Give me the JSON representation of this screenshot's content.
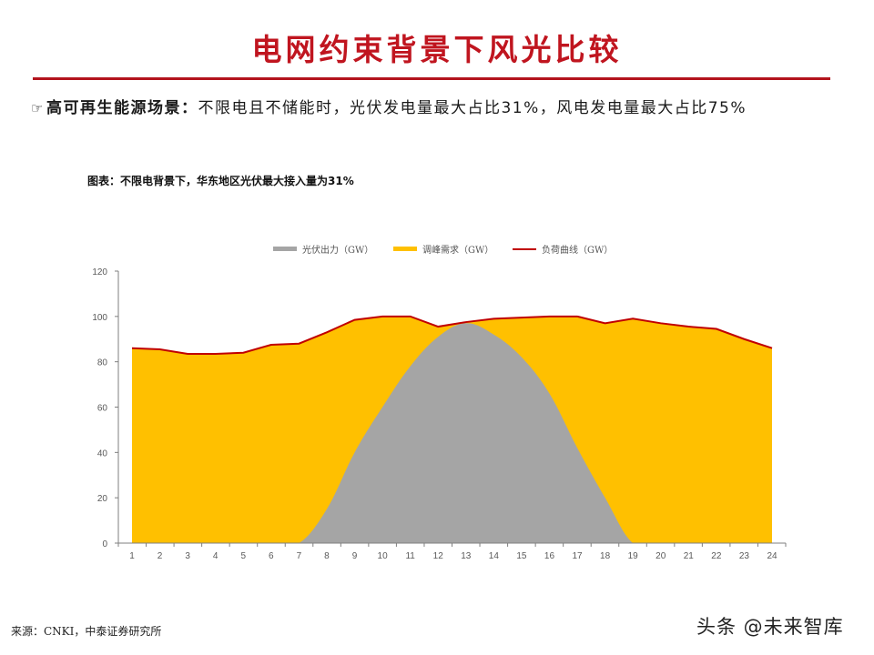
{
  "header": {
    "title": "电网约束背景下风光比较",
    "accent_color": "#c0151f"
  },
  "subtitle": {
    "icon": "pointing-hand-icon",
    "icon_glyph": "☞",
    "bold_text": "高可再生能源场景：",
    "text": "不限电且不储能时，光伏发电量最大占比31%，风电发电量最大占比75%"
  },
  "chart_caption": "图表：不限电背景下，华东地区光伏最大接入量为31%",
  "legend": [
    {
      "label": "光伏出力（GW）",
      "color": "#a5a5a5",
      "type": "area"
    },
    {
      "label": "调峰需求（GW）",
      "color": "#ffc000",
      "type": "area"
    },
    {
      "label": "负荷曲线（GW）",
      "color": "#c00000",
      "type": "line"
    }
  ],
  "chart_data": {
    "type": "area",
    "title": "不限电背景下，华东地区光伏最大接入量为31%",
    "xlabel": "",
    "ylabel": "",
    "x": [
      1,
      2,
      3,
      4,
      5,
      6,
      7,
      8,
      9,
      10,
      11,
      12,
      13,
      14,
      15,
      16,
      17,
      18,
      19,
      20,
      21,
      22,
      23,
      24
    ],
    "ylim": [
      0,
      120
    ],
    "yticks": [
      0,
      20,
      40,
      60,
      80,
      100,
      120
    ],
    "grid": false,
    "legend_position": "top",
    "series": [
      {
        "name": "光伏出力（GW）",
        "type": "area",
        "color": "#a5a5a5",
        "values": [
          0,
          0,
          0,
          0,
          0,
          0,
          0,
          15,
          40,
          60,
          78,
          91,
          97,
          92,
          82,
          66,
          42,
          20,
          0,
          0,
          0,
          0,
          0,
          0
        ]
      },
      {
        "name": "调峰需求（GW）",
        "type": "area",
        "color": "#ffc000",
        "values": [
          86,
          85.5,
          83.5,
          83.5,
          84,
          87.5,
          88,
          78,
          58.5,
          40,
          22,
          4.5,
          0.5,
          7,
          17.5,
          34,
          58,
          77,
          99,
          97,
          95.5,
          94.5,
          90,
          86
        ]
      },
      {
        "name": "负荷曲线（GW）",
        "type": "line",
        "color": "#c00000",
        "values": [
          86,
          85.5,
          83.5,
          83.5,
          84,
          87.5,
          88,
          93,
          98.5,
          100,
          100,
          95.5,
          97.5,
          99,
          99.5,
          100,
          100,
          97,
          99,
          97,
          95.5,
          94.5,
          90,
          86
        ]
      }
    ]
  },
  "source": "来源：CNKI，中泰证券研究所",
  "watermark": "头条 @未来智库"
}
